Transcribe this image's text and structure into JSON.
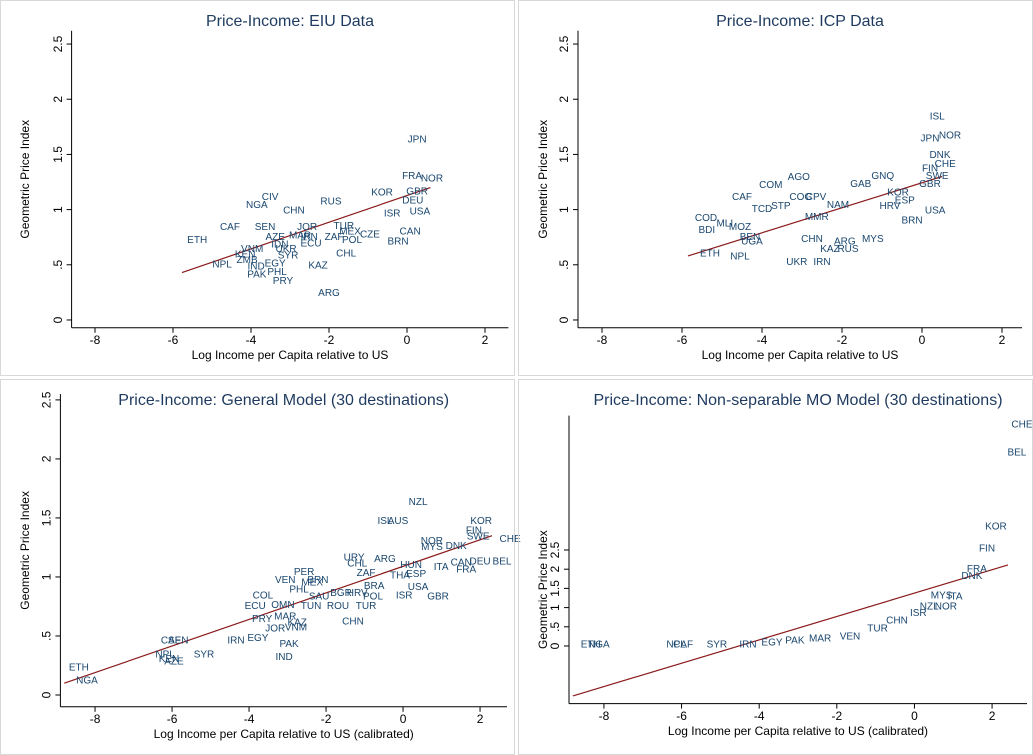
{
  "chart_data": [
    {
      "type": "scatter",
      "title": "Price-Income: EIU Data",
      "x_label": "Log Income per Capita relative to US",
      "y_label": "Geometric Price Index",
      "label_color": "#1a476f",
      "fit_color": "#8b1a1a",
      "xlim": [
        -8.6,
        2.6
      ],
      "ylim": [
        -0.07,
        2.62
      ],
      "xticks": [
        -8,
        -6,
        -4,
        -2,
        0,
        2
      ],
      "yticks": [
        0,
        {
          "value": 0.5,
          "label": ".5"
        },
        1,
        {
          "value": 1.5,
          "label": "1.5"
        },
        2,
        {
          "value": 2.5,
          "label": "2.5"
        }
      ],
      "labels": [
        "JPN",
        "FRA",
        "NOR",
        "GBR",
        "DEU",
        "KOR",
        "RUS",
        "CIV",
        "NGA",
        "CHN",
        "ISR",
        "USA",
        "CAF",
        "SEN",
        "JOR",
        "TUR",
        "MEX",
        "CZE",
        "AZE",
        "MAR",
        "IRN",
        "ZAF",
        "POL",
        "ETH",
        "IDN",
        "ECU",
        "BRN",
        "CAN",
        "UKR",
        "VNM",
        "KEN",
        "SYR",
        "CHL",
        "ARG",
        "ZMB",
        "IND",
        "EGY",
        "PHL",
        "PAK",
        "PRY",
        "NPL",
        "KAZ"
      ],
      "x": [
        0.26,
        0.13,
        0.64,
        0.26,
        0.15,
        -0.64,
        -1.95,
        -3.51,
        -3.85,
        -2.9,
        -0.38,
        0.33,
        -4.54,
        -3.64,
        -2.56,
        -1.62,
        -1.46,
        -0.95,
        -3.38,
        -2.74,
        -2.51,
        -1.87,
        -1.41,
        -5.38,
        -3.26,
        -2.46,
        -0.23,
        0.08,
        -3.1,
        -3.97,
        -4.15,
        -3.05,
        -1.56,
        -2.0,
        -4.1,
        -3.87,
        -3.38,
        -3.33,
        -3.85,
        -3.18,
        -4.74,
        -2.28
      ],
      "y": [
        1.63,
        1.3,
        1.28,
        1.16,
        1.08,
        1.15,
        1.07,
        1.11,
        1.04,
        0.99,
        0.96,
        0.98,
        0.84,
        0.84,
        0.84,
        0.85,
        0.8,
        0.77,
        0.75,
        0.76,
        0.75,
        0.75,
        0.72,
        0.72,
        0.68,
        0.69,
        0.71,
        0.8,
        0.64,
        0.64,
        0.59,
        0.58,
        0.6,
        0.24,
        0.54,
        0.48,
        0.51,
        0.43,
        0.41,
        0.35,
        0.5,
        0.49
      ],
      "fit_x": [
        -5.77,
        0.6
      ],
      "fit_y": [
        0.43,
        1.2
      ]
    },
    {
      "type": "scatter",
      "title": "Price-Income: ICP Data",
      "x_label": "Log Income per Capita relative to US",
      "y_label": "Geometric Price Index",
      "label_color": "#1a476f",
      "fit_color": "#8b1a1a",
      "xlim": [
        -8.6,
        2.5
      ],
      "ylim": [
        -0.07,
        2.62
      ],
      "xticks": [
        -8,
        -6,
        -4,
        -2,
        0,
        2
      ],
      "yticks": [
        0,
        {
          "value": 0.5,
          "label": ".5"
        },
        1,
        {
          "value": 1.5,
          "label": "1.5"
        },
        2,
        {
          "value": 2.5,
          "label": "2.5"
        }
      ],
      "labels": [
        "ISL",
        "NOR",
        "JPN",
        "DNK",
        "CHE",
        "FIN",
        "SWE",
        "GNQ",
        "AGO",
        "GAB",
        "COM",
        "GBR",
        "KOR",
        "CAF",
        "COG",
        "CPV",
        "NAM",
        "HRV",
        "ESP",
        "USA",
        "TCD",
        "STP",
        "COD",
        "MLI",
        "BDI",
        "MOZ",
        "MMR",
        "BRN",
        "BEN",
        "MYS",
        "UGA",
        "ETH",
        "NPL",
        "KAZ",
        "RUS",
        "UKR",
        "IRN",
        "CHN",
        "ARG"
      ],
      "x": [
        0.38,
        0.7,
        0.2,
        0.45,
        0.58,
        0.2,
        0.38,
        -0.98,
        -3.08,
        -1.53,
        -3.78,
        0.2,
        -0.6,
        -4.5,
        -3.03,
        -2.65,
        -2.1,
        -0.8,
        -0.43,
        0.33,
        -4.0,
        -3.53,
        -5.4,
        -4.93,
        -5.38,
        -4.55,
        -2.63,
        -0.25,
        -4.3,
        -1.23,
        -4.25,
        -5.3,
        -4.55,
        -2.3,
        -1.85,
        -3.13,
        -2.5,
        -2.75,
        -1.93
      ],
      "y": [
        1.84,
        1.67,
        1.64,
        1.49,
        1.41,
        1.37,
        1.3,
        1.3,
        1.29,
        1.23,
        1.22,
        1.23,
        1.15,
        1.11,
        1.11,
        1.11,
        1.04,
        1.03,
        1.08,
        0.99,
        1.0,
        1.03,
        0.92,
        0.87,
        0.81,
        0.84,
        0.93,
        0.9,
        0.75,
        0.73,
        0.71,
        0.6,
        0.57,
        0.64,
        0.64,
        0.52,
        0.52,
        0.73,
        0.71
      ],
      "fit_x": [
        -5.85,
        0.5
      ],
      "fit_y": [
        0.58,
        1.3
      ]
    },
    {
      "type": "scatter",
      "title": "Price-Income: General Model (30 destinations)",
      "x_label": "Log Income per Capita relative to US (calibrated)",
      "y_label": "Geometric Price Index",
      "label_color": "#1a476f",
      "fit_color": "#8b1a1a",
      "xlim": [
        -8.9,
        2.7
      ],
      "ylim": [
        -0.1,
        2.55
      ],
      "xticks": [
        -8,
        -6,
        -4,
        -2,
        0,
        2
      ],
      "yticks": [
        0,
        {
          "value": 0.5,
          "label": ".5"
        },
        1,
        {
          "value": 1.5,
          "label": "1.5"
        },
        2,
        {
          "value": 2.5,
          "label": "2.5"
        }
      ],
      "labels": [
        "NZL",
        "KOR",
        "FIN",
        "SWE",
        "CHE",
        "ISL",
        "AUS",
        "NOR",
        "MYS",
        "DNK",
        "URY",
        "ARG",
        "CHL",
        "HUN",
        "CAN",
        "DEU",
        "BEL",
        "ITA",
        "FRA",
        "PER",
        "ZAF",
        "THA",
        "ESP",
        "VEN",
        "BRN",
        "MEX",
        "BRA",
        "USA",
        "PHL",
        "SAU",
        "BGR",
        "HRV",
        "POL",
        "ISR",
        "GBR",
        "COL",
        "ECU",
        "OMN",
        "TUN",
        "ROU",
        "TUR",
        "PRY",
        "MAR",
        "KAZ",
        "JOR",
        "VNM",
        "CHN",
        "EGY",
        "IRN",
        "PAK",
        "IND",
        "CAF",
        "SEN",
        "NPL",
        "KEN",
        "AZE",
        "SYR",
        "ETH",
        "NGA"
      ],
      "x": [
        0.39,
        2.03,
        1.84,
        1.95,
        2.78,
        -0.47,
        -0.13,
        0.75,
        0.75,
        1.38,
        -1.27,
        -0.47,
        -1.19,
        0.21,
        1.51,
        2.0,
        2.57,
        0.99,
        1.64,
        -2.57,
        -0.96,
        -0.08,
        0.34,
        -3.06,
        -2.21,
        -2.36,
        -0.75,
        0.39,
        -2.7,
        -2.18,
        -1.61,
        -1.19,
        -0.78,
        0.03,
        0.91,
        -3.64,
        -3.84,
        -3.12,
        -2.39,
        -1.69,
        -0.96,
        -3.66,
        -3.06,
        -2.75,
        -3.32,
        -2.78,
        -1.3,
        -3.77,
        -4.34,
        -2.96,
        -3.09,
        -6.03,
        -5.84,
        -6.18,
        -6.08,
        -5.95,
        -5.17,
        -8.42,
        -8.21
      ],
      "y": [
        1.63,
        1.47,
        1.39,
        1.34,
        1.32,
        1.47,
        1.47,
        1.3,
        1.25,
        1.26,
        1.16,
        1.15,
        1.11,
        1.1,
        1.12,
        1.13,
        1.13,
        1.08,
        1.06,
        1.04,
        1.03,
        1.01,
        1.02,
        0.97,
        0.97,
        0.95,
        0.92,
        0.91,
        0.89,
        0.83,
        0.86,
        0.86,
        0.83,
        0.84,
        0.83,
        0.84,
        0.75,
        0.76,
        0.75,
        0.75,
        0.75,
        0.64,
        0.66,
        0.61,
        0.56,
        0.57,
        0.62,
        0.48,
        0.46,
        0.43,
        0.32,
        0.46,
        0.46,
        0.34,
        0.3,
        0.28,
        0.34,
        0.23,
        0.12
      ],
      "fit_x": [
        -8.8,
        2.31
      ],
      "fit_y": [
        0.1,
        1.35
      ]
    },
    {
      "type": "scatter",
      "title": "Price-Income: Non-separable MO Model (30 destinations)",
      "x_label": "Log Income per Capita relative to US (calibrated)",
      "y_label": "Geometric Price Index",
      "label_color": "#1a476f",
      "fit_color": "#8b1a1a",
      "xlim": [
        -8.9,
        2.9
      ],
      "ylim": [
        -1.5,
        6
      ],
      "xticks": [
        -8,
        -6,
        -4,
        -2,
        0,
        2
      ],
      "yticks": [
        0,
        {
          "value": 0.5,
          "label": ".5"
        },
        1,
        {
          "value": 1.5,
          "label": "1.5"
        },
        2,
        {
          "value": 2.5,
          "label": "2.5"
        }
      ],
      "labels": [
        "CHE",
        "BEL",
        "KOR",
        "FIN",
        "FRA",
        "DNK",
        "ITA",
        "NOR",
        "NZL",
        "ETH",
        "NGA",
        "NPL",
        "CAF",
        "SYR",
        "IRN",
        "EGY",
        "PAK",
        "MAR",
        "VEN",
        "CHN",
        "TUR",
        "ISR",
        "MYS"
      ],
      "x": [
        2.77,
        2.64,
        2.1,
        1.87,
        1.61,
        1.48,
        1.05,
        0.81,
        0.38,
        -8.34,
        -8.13,
        -6.14,
        -5.96,
        -5.09,
        -4.29,
        -3.67,
        -3.08,
        -2.43,
        -1.66,
        -0.45,
        -0.95,
        0.1,
        0.7
      ],
      "y": [
        5.76,
        5.03,
        3.1,
        2.53,
        2.0,
        1.82,
        1.28,
        1.02,
        1.02,
        0.03,
        0.03,
        0.03,
        0.03,
        0.03,
        0.03,
        0.08,
        0.13,
        0.18,
        0.24,
        0.65,
        0.45,
        0.85,
        1.3
      ],
      "fit_x": [
        -8.8,
        2.41
      ],
      "fit_y": [
        -1.3,
        2.11
      ]
    }
  ]
}
